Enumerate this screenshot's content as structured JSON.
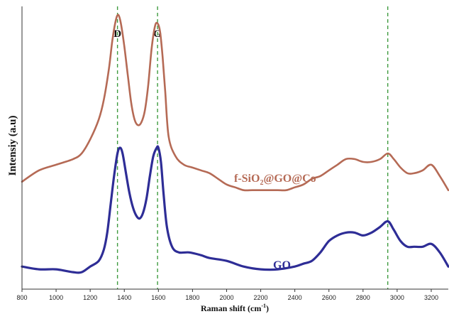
{
  "chart_data": {
    "type": "line",
    "xlabel": "Raman shift (cm",
    "xlabel_sup": "-1",
    "xlabel_end": ")",
    "ylabel": "Intensiy (a.u)",
    "xlim": [
      800,
      3300
    ],
    "xticks": [
      800,
      1000,
      1200,
      1400,
      1600,
      1800,
      2000,
      2200,
      2400,
      2600,
      2800,
      3000,
      3200
    ],
    "ylim": [
      0,
      100
    ],
    "y_ticks_labeled": false,
    "grid": false,
    "reference_lines": [
      {
        "x": 1360,
        "label": "D"
      },
      {
        "x": 1595,
        "label": "G"
      },
      {
        "x": 2945,
        "label": ""
      }
    ],
    "series": [
      {
        "name": "f-SiO2@GO@Co",
        "label_parts": [
          "f-SiO",
          "2",
          "@GO@Co"
        ],
        "color": "#b56a55",
        "stroke_width": 2.6,
        "x": [
          800,
          900,
          1000,
          1100,
          1150,
          1200,
          1250,
          1280,
          1310,
          1330,
          1350,
          1365,
          1380,
          1400,
          1420,
          1440,
          1460,
          1480,
          1500,
          1520,
          1540,
          1560,
          1580,
          1595,
          1610,
          1625,
          1640,
          1660,
          1700,
          1750,
          1800,
          1850,
          1900,
          1950,
          2000,
          2050,
          2100,
          2150,
          2200,
          2250,
          2300,
          2350,
          2400,
          2450,
          2500,
          2550,
          2600,
          2650,
          2700,
          2750,
          2800,
          2850,
          2900,
          2945,
          2980,
          3020,
          3060,
          3100,
          3150,
          3200,
          3250,
          3300
        ],
        "y": [
          38,
          42,
          44,
          46,
          48,
          53,
          60,
          67,
          78,
          88,
          95,
          97,
          94,
          86,
          76,
          66,
          60,
          58,
          59,
          63,
          72,
          85,
          93,
          94,
          91,
          82,
          70,
          54,
          47,
          44,
          43,
          42,
          41,
          39,
          37,
          36,
          35,
          35,
          35,
          35,
          35,
          35,
          36,
          37,
          39,
          40,
          42,
          44,
          46,
          46,
          45,
          45,
          46,
          48,
          46,
          43,
          41,
          41,
          42,
          44,
          40,
          35
        ]
      },
      {
        "name": "GO",
        "label_parts": [
          "GO"
        ],
        "color": "#2e2d96",
        "stroke_width": 3.2,
        "x": [
          800,
          900,
          1000,
          1100,
          1150,
          1200,
          1250,
          1280,
          1300,
          1320,
          1340,
          1360,
          1375,
          1390,
          1410,
          1430,
          1450,
          1470,
          1490,
          1510,
          1530,
          1550,
          1570,
          1590,
          1600,
          1615,
          1630,
          1650,
          1680,
          1720,
          1780,
          1850,
          1900,
          2000,
          2100,
          2200,
          2300,
          2400,
          2450,
          2500,
          2550,
          2600,
          2650,
          2700,
          2750,
          2800,
          2850,
          2900,
          2945,
          2980,
          3020,
          3060,
          3100,
          3150,
          3200,
          3250,
          3300
        ],
        "y": [
          8,
          7,
          7,
          6,
          6,
          8,
          10,
          14,
          20,
          30,
          40,
          48,
          50,
          48,
          41,
          34,
          29,
          26,
          25,
          27,
          32,
          40,
          47,
          50,
          50,
          45,
          34,
          22,
          15,
          13,
          13,
          12,
          11,
          10,
          8,
          7,
          7,
          8,
          9,
          10,
          13,
          17,
          19,
          20,
          20,
          19,
          20,
          22,
          24,
          21,
          17,
          15,
          15,
          15,
          16,
          13,
          8
        ]
      }
    ]
  }
}
